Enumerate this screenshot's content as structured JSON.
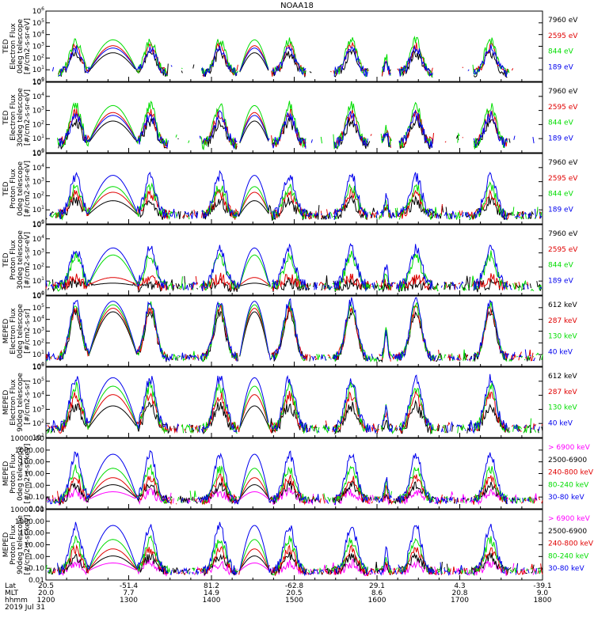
{
  "title": "NOAA18",
  "colors": {
    "black": "#000000",
    "red": "#e00000",
    "green": "#00dd00",
    "blue": "#0000ee",
    "magenta": "#ff00ff"
  },
  "chart_data": [
    {
      "type": "line",
      "panel": "ted-electron-0deg",
      "ylabel_lines": [
        "TED",
        "Electron Flux",
        "0deg telescope",
        "[#/cm2-s-sr-eV]"
      ],
      "yscale": "log",
      "ylim": [
        1,
        1000000
      ],
      "yticks": [
        "10^0",
        "10^1",
        "10^2",
        "10^3",
        "10^4",
        "10^5",
        "10^6"
      ],
      "series": [
        {
          "name": "7960 eV",
          "color": "black",
          "peak_log": 2.4
        },
        {
          "name": "2595 eV",
          "color": "red",
          "peak_log": 3.0
        },
        {
          "name": "844 eV",
          "color": "green",
          "peak_log": 3.5
        },
        {
          "name": "189 eV",
          "color": "blue",
          "peak_log": 2.8
        }
      ]
    },
    {
      "type": "line",
      "panel": "ted-electron-30deg",
      "ylabel_lines": [
        "TED",
        "Electron Flux",
        "30deg telescope",
        "[#/cm2-s-sr-eV]"
      ],
      "yscale": "log",
      "ylim": [
        1,
        100000
      ],
      "yticks": [
        "10^0",
        "10^1",
        "10^2",
        "10^3",
        "10^4",
        "10^5"
      ],
      "series": [
        {
          "name": "7960 eV",
          "color": "black",
          "peak_log": 2.2
        },
        {
          "name": "2595 eV",
          "color": "red",
          "peak_log": 2.8
        },
        {
          "name": "844 eV",
          "color": "green",
          "peak_log": 3.3
        },
        {
          "name": "189 eV",
          "color": "blue",
          "peak_log": 2.6
        }
      ]
    },
    {
      "type": "line",
      "panel": "ted-proton-0deg",
      "ylabel_lines": [
        "TED",
        "Proton Flux",
        "0deg telescope",
        "[#/cm2-s-sr-eV]"
      ],
      "yscale": "log",
      "ylim": [
        1,
        100000
      ],
      "yticks": [
        "10^0",
        "10^1",
        "10^2",
        "10^3",
        "10^4",
        "10^5"
      ],
      "series": [
        {
          "name": "7960 eV",
          "color": "black",
          "peak_log": 1.6
        },
        {
          "name": "2595 eV",
          "color": "red",
          "peak_log": 2.2
        },
        {
          "name": "844 eV",
          "color": "green",
          "peak_log": 2.6
        },
        {
          "name": "189 eV",
          "color": "blue",
          "peak_log": 3.4
        }
      ]
    },
    {
      "type": "line",
      "panel": "ted-proton-30deg",
      "ylabel_lines": [
        "TED",
        "Proton Flux",
        "30deg telescope",
        "[#/cm2-s-sr-eV]"
      ],
      "yscale": "log",
      "ylim": [
        1,
        100000
      ],
      "yticks": [
        "10^0",
        "10^1",
        "10^2",
        "10^3",
        "10^4",
        "10^5"
      ],
      "series": [
        {
          "name": "7960 eV",
          "color": "black",
          "peak_log": 0.8
        },
        {
          "name": "2595 eV",
          "color": "red",
          "peak_log": 1.2
        },
        {
          "name": "844 eV",
          "color": "green",
          "peak_log": 2.8
        },
        {
          "name": "189 eV",
          "color": "blue",
          "peak_log": 3.3
        }
      ]
    },
    {
      "type": "line",
      "panel": "meped-electron-0deg",
      "ylabel_lines": [
        "MEPED",
        "Electron Flux",
        "0deg telescope",
        "[#/cm2-s-sr]"
      ],
      "yscale": "log",
      "ylim": [
        1,
        1000000
      ],
      "yticks": [
        "10^0",
        "10^1",
        "10^2",
        "10^3",
        "10^4",
        "10^5",
        "10^6"
      ],
      "series": [
        {
          "name": "612 keV",
          "color": "black",
          "peak_log": 4.6
        },
        {
          "name": "287 keV",
          "color": "red",
          "peak_log": 4.9
        },
        {
          "name": "130 keV",
          "color": "green",
          "peak_log": 5.2
        },
        {
          "name": "40 keV",
          "color": "blue",
          "peak_log": 5.5
        }
      ]
    },
    {
      "type": "line",
      "panel": "meped-electron-90deg",
      "ylabel_lines": [
        "MEPED",
        "Electron Flux",
        "90deg telescope",
        "[#/cm2-s-sr]"
      ],
      "yscale": "log",
      "ylim": [
        10,
        1000000
      ],
      "yticks": [
        "10^1",
        "10^2",
        "10^3",
        "10^4",
        "10^5",
        "10^6"
      ],
      "series": [
        {
          "name": "612 keV",
          "color": "black",
          "peak_log": 3.2
        },
        {
          "name": "287 keV",
          "color": "red",
          "peak_log": 4.0
        },
        {
          "name": "130 keV",
          "color": "green",
          "peak_log": 4.6
        },
        {
          "name": "40 keV",
          "color": "blue",
          "peak_log": 5.2
        }
      ]
    },
    {
      "type": "line",
      "panel": "meped-proton-0deg",
      "ylabel_lines": [
        "MEPED",
        "Proton Flux",
        "0deg telescope",
        "[#/cm2-s-sr-keV]"
      ],
      "yscale": "log",
      "ylim": [
        0.01,
        10000
      ],
      "yticks": [
        "0.01",
        "0.10",
        "1.00",
        "10.00",
        "100.00",
        "1000.00",
        "10000.00"
      ],
      "series": [
        {
          "name": "> 6900 keV",
          "color": "magenta",
          "peak_log": -0.6
        },
        {
          "name": "2500-6900",
          "color": "black",
          "peak_log": 0.0
        },
        {
          "name": "240-800 keV",
          "color": "red",
          "peak_log": 0.6
        },
        {
          "name": "80-240 keV",
          "color": "green",
          "peak_log": 1.4
        },
        {
          "name": "30-80 keV",
          "color": "blue",
          "peak_log": 2.6
        }
      ]
    },
    {
      "type": "line",
      "panel": "meped-proton-90deg",
      "ylabel_lines": [
        "MEPED",
        "Proton Flux",
        "90deg telescope",
        "[#/cm2-s-sr-keV]"
      ],
      "yscale": "log",
      "ylim": [
        0.01,
        10000
      ],
      "yticks": [
        "0.01",
        "0.10",
        "1.00",
        "10.00",
        "100.00",
        "1000.00",
        "10000.00"
      ],
      "series": [
        {
          "name": "> 6900 keV",
          "color": "magenta",
          "peak_log": -0.6
        },
        {
          "name": "2500-6900",
          "color": "black",
          "peak_log": 0.0
        },
        {
          "name": "240-800 keV",
          "color": "red",
          "peak_log": 0.6
        },
        {
          "name": "80-240 keV",
          "color": "green",
          "peak_log": 1.4
        },
        {
          "name": "30-80 keV",
          "color": "blue",
          "peak_log": 2.6
        }
      ]
    }
  ],
  "xaxis": {
    "row_labels": [
      "Lat",
      "MLT",
      "hhmm"
    ],
    "date": "2019 Jul 31",
    "time_range": [
      "1200",
      "1800"
    ],
    "ticks": [
      {
        "lat": "20.5",
        "mlt": "20.0",
        "hhmm": "1200"
      },
      {
        "lat": "-51.4",
        "mlt": "7.7",
        "hhmm": "1300"
      },
      {
        "lat": "81.2",
        "mlt": "14.9",
        "hhmm": "1400"
      },
      {
        "lat": "-62.8",
        "mlt": "20.5",
        "hhmm": "1500"
      },
      {
        "lat": "29.1",
        "mlt": "8.6",
        "hhmm": "1600"
      },
      {
        "lat": "4.3",
        "mlt": "20.8",
        "hhmm": "1700"
      },
      {
        "lat": "-39.1",
        "mlt": "9.0",
        "hhmm": "1800"
      }
    ]
  }
}
